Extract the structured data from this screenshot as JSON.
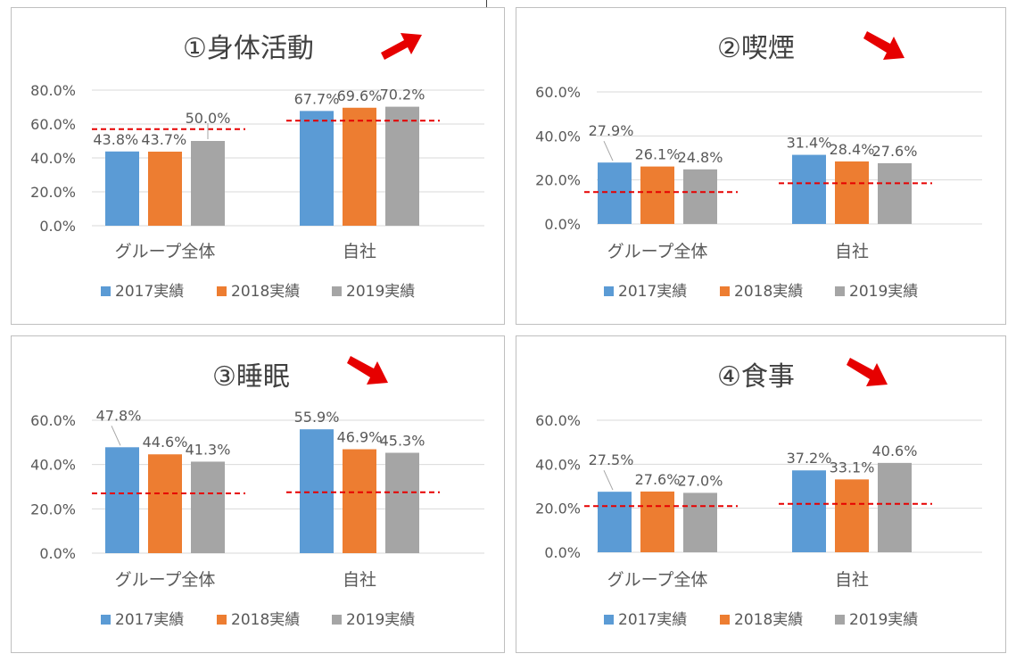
{
  "legend": [
    "2017実績",
    "2018実績",
    "2019実績"
  ],
  "colors": {
    "series": [
      "#5b9bd5",
      "#ed7d31",
      "#a5a5a5"
    ],
    "target_line": "#e60000",
    "arrow": "#e60000",
    "grid": "#d9d9d9",
    "text": "#595959"
  },
  "chart_data": [
    {
      "type": "bar",
      "title": "①身体活動",
      "trend": "up",
      "categories": [
        "グループ全体",
        "自社"
      ],
      "series": [
        {
          "name": "2017実績",
          "values": [
            43.8,
            67.7
          ]
        },
        {
          "name": "2018実績",
          "values": [
            43.7,
            69.6
          ]
        },
        {
          "name": "2019実績",
          "values": [
            50.0,
            70.2
          ]
        }
      ],
      "data_labels": [
        [
          "43.8%",
          "67.7%"
        ],
        [
          "43.7%",
          "69.6%"
        ],
        [
          "50.0%",
          "70.2%"
        ]
      ],
      "targets": [
        57.0,
        62.0
      ],
      "ylim": [
        0,
        80
      ],
      "yticks": [
        "0.0%",
        "20.0%",
        "40.0%",
        "60.0%",
        "80.0%"
      ],
      "grid": true,
      "legend_position": "bottom"
    },
    {
      "type": "bar",
      "title": "②喫煙",
      "trend": "down",
      "categories": [
        "グループ全体",
        "自社"
      ],
      "series": [
        {
          "name": "2017実績",
          "values": [
            27.9,
            31.4
          ]
        },
        {
          "name": "2018実績",
          "values": [
            26.1,
            28.4
          ]
        },
        {
          "name": "2019実績",
          "values": [
            24.8,
            27.6
          ]
        }
      ],
      "data_labels": [
        [
          "27.9%",
          "31.4%"
        ],
        [
          "26.1%",
          "28.4%"
        ],
        [
          "24.8%",
          "27.6%"
        ]
      ],
      "targets": [
        14.5,
        18.5
      ],
      "ylim": [
        0,
        60
      ],
      "yticks": [
        "0.0%",
        "20.0%",
        "40.0%",
        "60.0%"
      ],
      "grid": true,
      "legend_position": "bottom"
    },
    {
      "type": "bar",
      "title": "③睡眠",
      "trend": "down",
      "categories": [
        "グループ全体",
        "自社"
      ],
      "series": [
        {
          "name": "2017実績",
          "values": [
            47.8,
            55.9
          ]
        },
        {
          "name": "2018実績",
          "values": [
            44.6,
            46.9
          ]
        },
        {
          "name": "2019実績",
          "values": [
            41.3,
            45.3
          ]
        }
      ],
      "data_labels": [
        [
          "47.8%",
          "55.9%"
        ],
        [
          "44.6%",
          "46.9%"
        ],
        [
          "41.3%",
          "45.3%"
        ]
      ],
      "targets": [
        27.0,
        27.5
      ],
      "ylim": [
        0,
        60
      ],
      "yticks": [
        "0.0%",
        "20.0%",
        "40.0%",
        "60.0%"
      ],
      "grid": true,
      "legend_position": "bottom"
    },
    {
      "type": "bar",
      "title": "④食事",
      "trend": "down",
      "categories": [
        "グループ全体",
        "自社"
      ],
      "series": [
        {
          "name": "2017実績",
          "values": [
            27.5,
            37.2
          ]
        },
        {
          "name": "2018実績",
          "values": [
            27.6,
            33.1
          ]
        },
        {
          "name": "2019実績",
          "values": [
            27.0,
            40.6
          ]
        }
      ],
      "data_labels": [
        [
          "27.5%",
          "37.2%"
        ],
        [
          "27.6%",
          "33.1%"
        ],
        [
          "27.0%",
          "40.6%"
        ]
      ],
      "targets": [
        21.0,
        22.0
      ],
      "ylim": [
        0,
        60
      ],
      "yticks": [
        "0.0%",
        "20.0%",
        "40.0%",
        "60.0%"
      ],
      "grid": true,
      "legend_position": "bottom"
    }
  ]
}
